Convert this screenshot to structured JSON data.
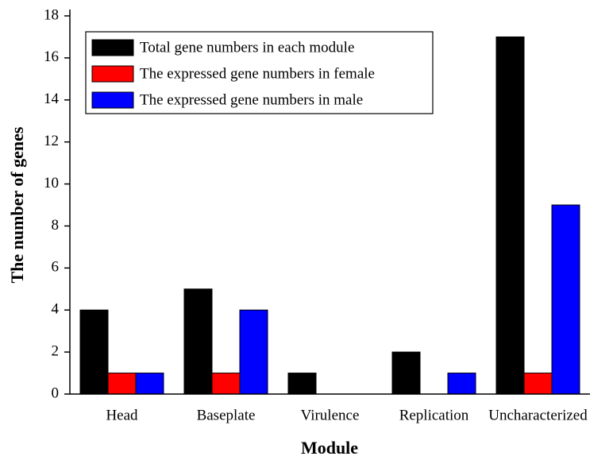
{
  "chart_data": {
    "type": "bar",
    "x_label": "Module",
    "y_label": "The number of genes",
    "categories": [
      "Head",
      "Baseplate",
      "Virulence",
      "Replication",
      "Uncharacterized"
    ],
    "series": [
      {
        "name": "Total gene numbers in each module",
        "color": "#000000",
        "values": [
          4,
          5,
          1,
          2,
          17
        ]
      },
      {
        "name": "The expressed gene numbers in female",
        "color": "#ff0000",
        "values": [
          1,
          1,
          0,
          0,
          1
        ]
      },
      {
        "name": "The expressed gene numbers in male",
        "color": "#0000ff",
        "values": [
          1,
          4,
          0,
          1,
          9
        ]
      }
    ],
    "ylim": [
      0,
      18
    ],
    "yticks": [
      0,
      2,
      4,
      6,
      8,
      10,
      12,
      14,
      16,
      18
    ],
    "legend": "upper left"
  }
}
